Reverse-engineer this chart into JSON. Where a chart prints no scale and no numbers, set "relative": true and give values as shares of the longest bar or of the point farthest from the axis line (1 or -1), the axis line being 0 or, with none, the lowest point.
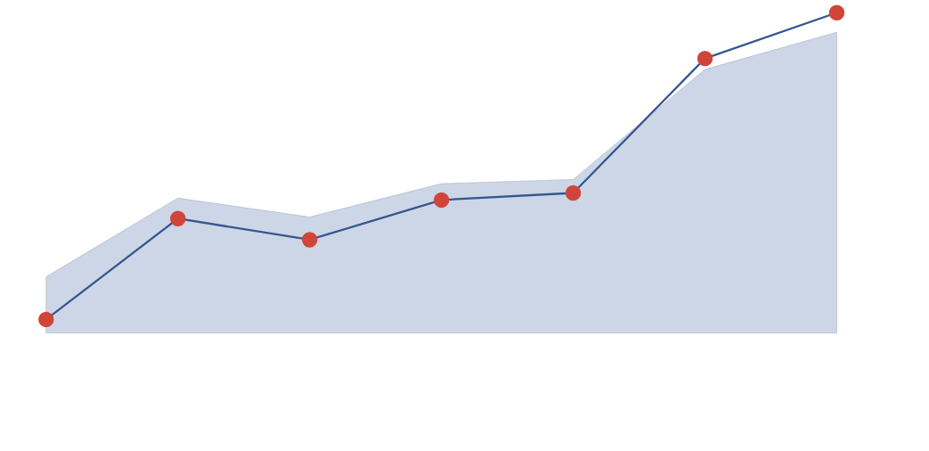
{
  "chart_data": {
    "type": "line",
    "relative": true,
    "categories": [
      null,
      null,
      null,
      null,
      null,
      null,
      null
    ],
    "series": [
      {
        "type": "area",
        "color": "#cdd6e6",
        "values": [
          0.175,
          0.421,
          0.362,
          0.466,
          0.479,
          0.823,
          0.939
        ]
      },
      {
        "color": "#34568f",
        "marker": "circle",
        "colors": [
          "#d0453a",
          "#d0453a",
          "#d0453a",
          "#d0453a",
          "#d0453a",
          "#d0453a",
          "#d0453a"
        ],
        "values": [
          0.042,
          0.357,
          0.291,
          0.415,
          0.437,
          0.857,
          1
        ]
      }
    ]
  }
}
